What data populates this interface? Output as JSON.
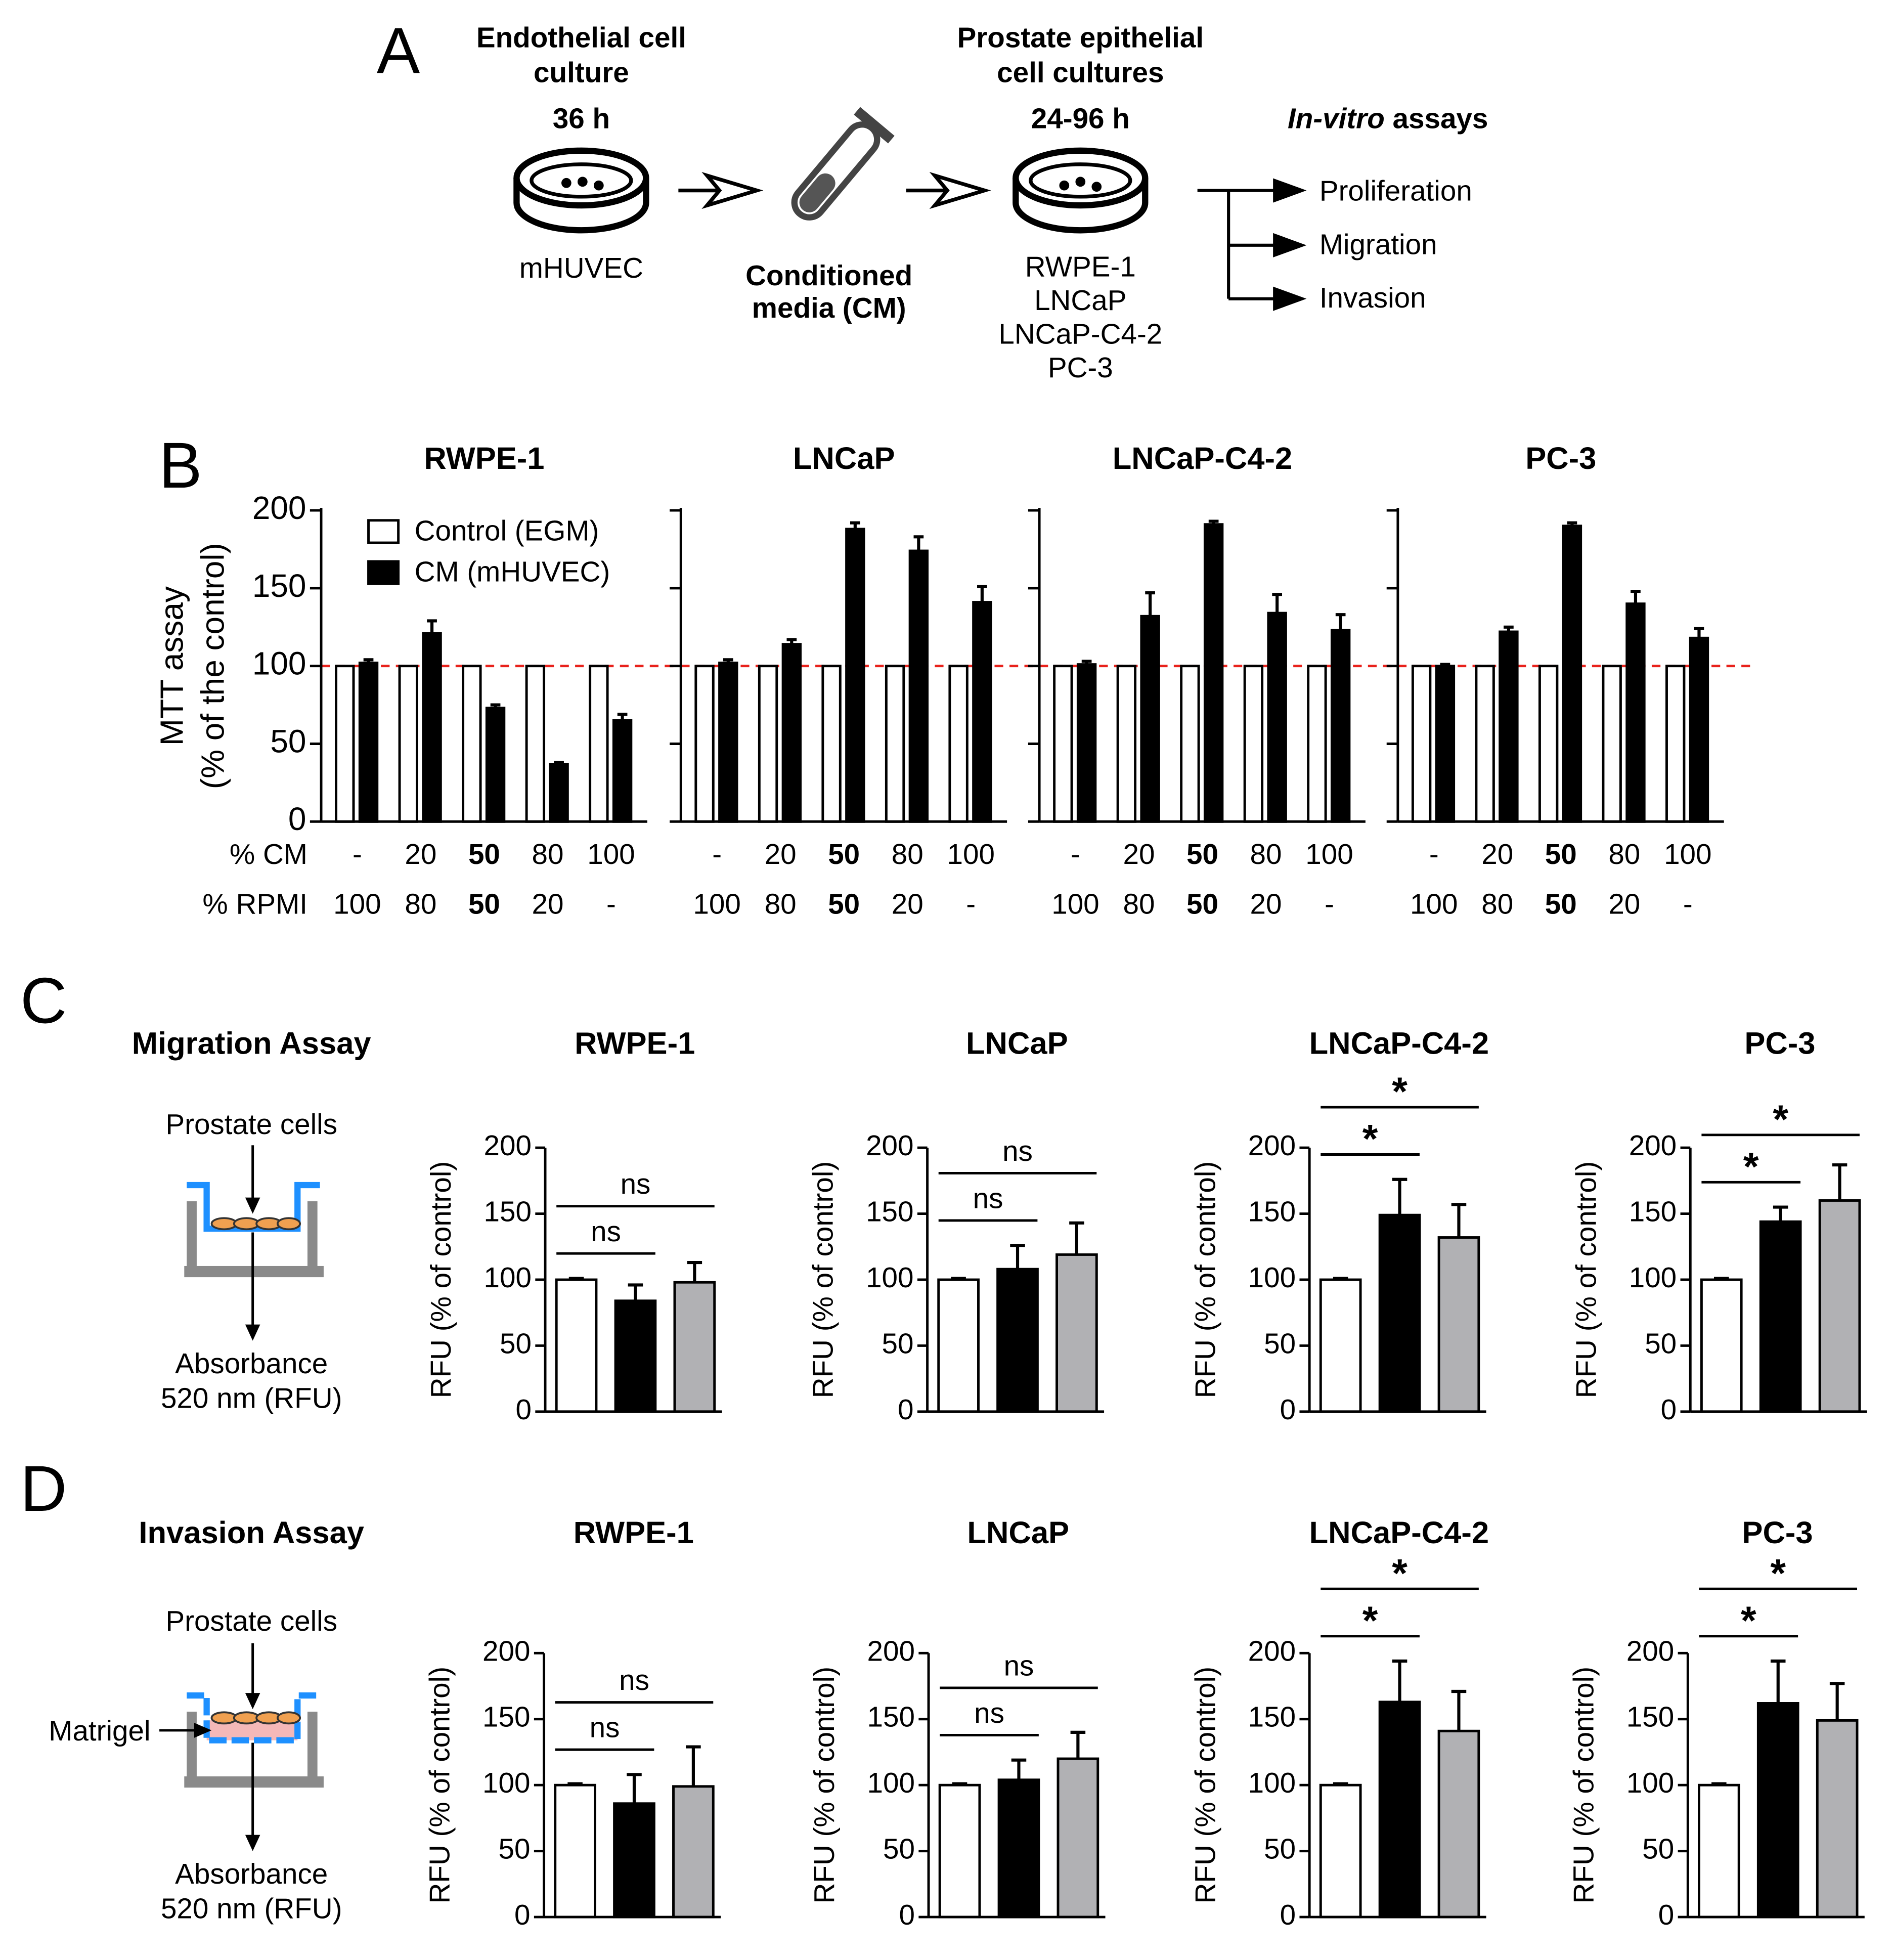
{
  "panel_labels": [
    "A",
    "B",
    "C",
    "D"
  ],
  "panel_a": {
    "endothelial": {
      "title": [
        "Endothelial cell",
        "culture"
      ],
      "time": "36 h",
      "cell": "mHUVEC"
    },
    "conditioned": [
      "Conditioned",
      "media (CM)"
    ],
    "prostate": {
      "title": [
        "Prostate epithelial",
        "cell cultures"
      ],
      "time": "24-96 h",
      "cells": [
        "RWPE-1",
        "LNCaP",
        "LNCaP-C4-2",
        "PC-3"
      ]
    },
    "assays": {
      "title_italic": "In-vitro",
      "title": "assays",
      "items": [
        "Proliferation",
        "Migration",
        "Invasion"
      ]
    }
  },
  "panel_c": {
    "title": "Migration Assay",
    "top": "Prostate cells",
    "bottom": [
      "Absorbance",
      "520 nm (RFU)"
    ]
  },
  "panel_d": {
    "title": "Invasion Assay",
    "top": "Prostate cells",
    "layer": "Matrigel",
    "bottom": [
      "Absorbance",
      "520 nm (RFU)"
    ]
  },
  "chart_data": [
    {
      "type": "bar",
      "title": "RWPE-1",
      "ylabel": [
        "MTT assay",
        "(% of the control)"
      ],
      "row_labels": [
        "% CM",
        "% RPMI"
      ],
      "categories": [
        "-",
        "20",
        "50",
        "80",
        "100"
      ],
      "categories2": [
        "100",
        "80",
        "50",
        "20",
        "-"
      ],
      "series": [
        {
          "name": "Control (EGM)",
          "color": "#ffffff",
          "values": [
            100,
            100,
            100,
            100,
            100
          ]
        },
        {
          "name": "CM (mHUVEC)",
          "color": "#000000",
          "values": [
            102,
            121,
            73,
            37,
            65
          ],
          "errors": [
            2,
            8,
            2,
            1,
            4
          ]
        }
      ],
      "ylim": [
        0,
        200
      ],
      "yticks": [
        0,
        50,
        100,
        150,
        200
      ],
      "reference_line": {
        "value": 100,
        "color": "#e8221c"
      },
      "legend": "upper left"
    },
    {
      "type": "bar",
      "title": "LNCaP",
      "categories": [
        "-",
        "20",
        "50",
        "80",
        "100"
      ],
      "categories2": [
        "100",
        "80",
        "50",
        "20",
        "-"
      ],
      "series": [
        {
          "color": "#ffffff",
          "values": [
            100,
            100,
            100,
            100,
            100
          ]
        },
        {
          "color": "#000000",
          "values": [
            102,
            114,
            188,
            174,
            141
          ],
          "errors": [
            2,
            3,
            4,
            9,
            10
          ]
        }
      ],
      "ylim": [
        0,
        200
      ],
      "yticks": [
        0,
        50,
        100,
        150,
        200
      ],
      "ytick_labels": false,
      "reference_line": {
        "value": 100,
        "color": "#e8221c"
      }
    },
    {
      "type": "bar",
      "title": "LNCaP-C4-2",
      "categories": [
        "-",
        "20",
        "50",
        "80",
        "100"
      ],
      "categories2": [
        "100",
        "80",
        "50",
        "20",
        "-"
      ],
      "series": [
        {
          "color": "#ffffff",
          "values": [
            100,
            100,
            100,
            100,
            100
          ]
        },
        {
          "color": "#000000",
          "values": [
            101,
            132,
            191,
            134,
            123
          ],
          "errors": [
            2,
            15,
            2,
            12,
            10
          ]
        }
      ],
      "ylim": [
        0,
        200
      ],
      "yticks": [
        0,
        50,
        100,
        150,
        200
      ],
      "ytick_labels": false,
      "reference_line": {
        "value": 100,
        "color": "#e8221c"
      }
    },
    {
      "type": "bar",
      "title": "PC-3",
      "categories": [
        "-",
        "20",
        "50",
        "80",
        "100"
      ],
      "categories2": [
        "100",
        "80",
        "50",
        "20",
        "-"
      ],
      "series": [
        {
          "color": "#ffffff",
          "values": [
            100,
            100,
            100,
            100,
            100
          ]
        },
        {
          "color": "#000000",
          "values": [
            100,
            122,
            190,
            140,
            118
          ],
          "errors": [
            1,
            3,
            2,
            8,
            6
          ]
        }
      ],
      "ylim": [
        0,
        200
      ],
      "yticks": [
        0,
        50,
        100,
        150,
        200
      ],
      "ytick_labels": false,
      "reference_line": {
        "value": 100,
        "color": "#e8221c"
      }
    },
    {
      "type": "bar",
      "title": "RWPE-1",
      "ylabel": "RFU (% of control)",
      "values": [
        100,
        84,
        98
      ],
      "errors": [
        1,
        12,
        15
      ],
      "colors": [
        "#ffffff",
        "#000000",
        "#b1b1b4"
      ],
      "annotations": [
        "ns",
        "ns"
      ],
      "ylim": [
        0,
        200
      ],
      "yticks": [
        0,
        50,
        100,
        150,
        200
      ]
    },
    {
      "type": "bar",
      "title": "LNCaP",
      "ylabel": "RFU (% of control)",
      "values": [
        100,
        108,
        119
      ],
      "errors": [
        1,
        18,
        24
      ],
      "colors": [
        "#ffffff",
        "#000000",
        "#b1b1b4"
      ],
      "annotations": [
        "ns",
        "ns"
      ],
      "ylim": [
        0,
        200
      ],
      "yticks": [
        0,
        50,
        100,
        150,
        200
      ]
    },
    {
      "type": "bar",
      "title": "LNCaP-C4-2",
      "ylabel": "RFU (% of control)",
      "values": [
        100,
        149,
        132
      ],
      "errors": [
        1,
        27,
        25
      ],
      "colors": [
        "#ffffff",
        "#000000",
        "#b1b1b4"
      ],
      "annotations": [
        "*",
        "*"
      ],
      "ylim": [
        0,
        200
      ],
      "yticks": [
        0,
        50,
        100,
        150,
        200
      ]
    },
    {
      "type": "bar",
      "title": "PC-3",
      "ylabel": "RFU (% of control)",
      "values": [
        100,
        144,
        160
      ],
      "errors": [
        1,
        11,
        27
      ],
      "colors": [
        "#ffffff",
        "#000000",
        "#b1b1b4"
      ],
      "annotations": [
        "*",
        "*"
      ],
      "ylim": [
        0,
        200
      ],
      "yticks": [
        0,
        50,
        100,
        150,
        200
      ]
    },
    {
      "type": "bar",
      "title": "RWPE-1",
      "ylabel": "RFU (% of control)",
      "values": [
        100,
        86,
        99
      ],
      "errors": [
        1,
        22,
        30
      ],
      "colors": [
        "#ffffff",
        "#000000",
        "#b1b1b4"
      ],
      "annotations": [
        "ns",
        "ns"
      ],
      "ylim": [
        0,
        200
      ],
      "yticks": [
        0,
        50,
        100,
        150,
        200
      ]
    },
    {
      "type": "bar",
      "title": "LNCaP",
      "ylabel": "RFU (% of control)",
      "values": [
        100,
        104,
        120
      ],
      "errors": [
        1,
        15,
        20
      ],
      "colors": [
        "#ffffff",
        "#000000",
        "#b1b1b4"
      ],
      "annotations": [
        "ns",
        "ns"
      ],
      "ylim": [
        0,
        200
      ],
      "yticks": [
        0,
        50,
        100,
        150,
        200
      ]
    },
    {
      "type": "bar",
      "title": "LNCaP-C4-2",
      "ylabel": "RFU (% of control)",
      "values": [
        100,
        163,
        141
      ],
      "errors": [
        1,
        31,
        30
      ],
      "colors": [
        "#ffffff",
        "#000000",
        "#b1b1b4"
      ],
      "annotations": [
        "*",
        "*"
      ],
      "ylim": [
        0,
        200
      ],
      "yticks": [
        0,
        50,
        100,
        150,
        200
      ]
    },
    {
      "type": "bar",
      "title": "PC-3",
      "ylabel": "RFU (% of control)",
      "values": [
        100,
        162,
        149
      ],
      "errors": [
        1,
        32,
        28
      ],
      "colors": [
        "#ffffff",
        "#000000",
        "#b1b1b4"
      ],
      "annotations": [
        "*",
        "*"
      ],
      "ylim": [
        0,
        200
      ],
      "yticks": [
        0,
        50,
        100,
        150,
        200
      ]
    }
  ]
}
